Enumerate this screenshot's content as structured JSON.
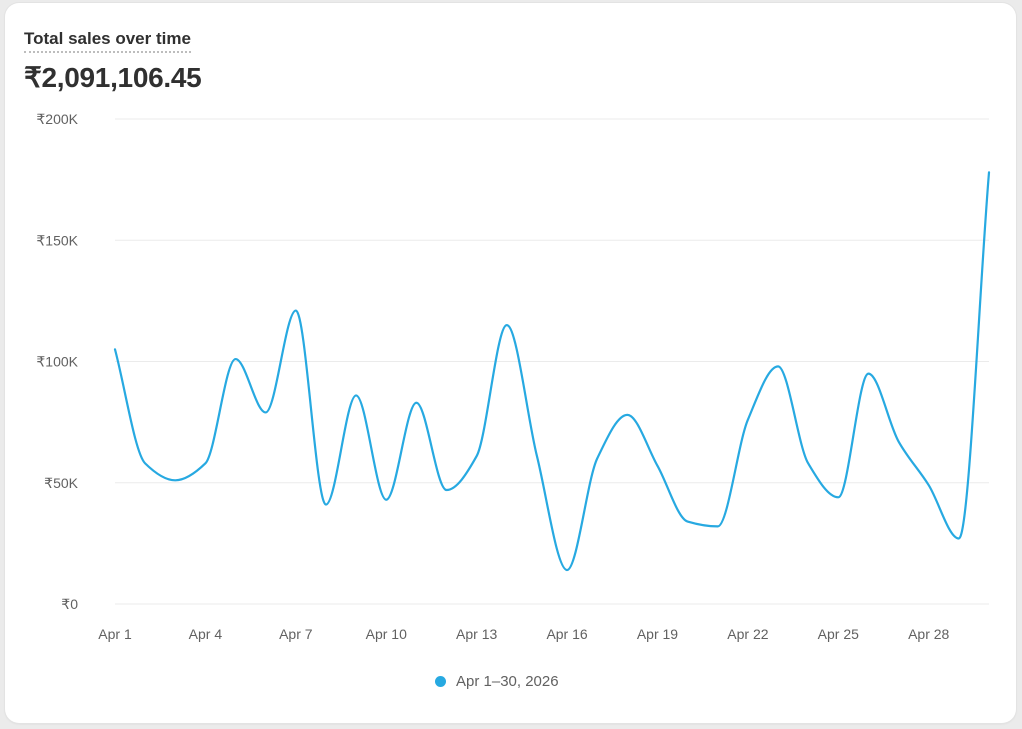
{
  "card": {
    "title": "Total sales over time",
    "total": "₹2,091,106.45"
  },
  "legend": {
    "label": "Apr 1–30, 2026"
  },
  "colors": {
    "line": "#27a9e1",
    "grid": "#ebebeb",
    "text": "#303030"
  },
  "chart_data": {
    "type": "line",
    "title": "Total sales over time",
    "ylabel": "",
    "xlabel": "",
    "ylim": [
      0,
      200000
    ],
    "yticks": [
      {
        "value": 0,
        "label": "₹0"
      },
      {
        "value": 50000,
        "label": "₹50K"
      },
      {
        "value": 100000,
        "label": "₹100K"
      },
      {
        "value": 150000,
        "label": "₹150K"
      },
      {
        "value": 200000,
        "label": "₹200K"
      }
    ],
    "xticks": [
      {
        "day": 1,
        "label": "Apr 1"
      },
      {
        "day": 4,
        "label": "Apr 4"
      },
      {
        "day": 7,
        "label": "Apr 7"
      },
      {
        "day": 10,
        "label": "Apr 10"
      },
      {
        "day": 13,
        "label": "Apr 13"
      },
      {
        "day": 16,
        "label": "Apr 16"
      },
      {
        "day": 19,
        "label": "Apr 19"
      },
      {
        "day": 22,
        "label": "Apr 22"
      },
      {
        "day": 25,
        "label": "Apr 25"
      },
      {
        "day": 28,
        "label": "Apr 28"
      }
    ],
    "grid": true,
    "legend_position": "bottom-center",
    "series": [
      {
        "name": "Apr 1–30, 2026",
        "x": [
          1,
          2,
          3,
          4,
          5,
          6,
          7,
          8,
          9,
          10,
          11,
          12,
          13,
          14,
          15,
          16,
          17,
          18,
          19,
          20,
          21,
          22,
          23,
          24,
          25,
          26,
          27,
          28,
          29,
          30
        ],
        "values": [
          105000,
          58000,
          51000,
          58000,
          101000,
          79000,
          121000,
          41000,
          86000,
          43000,
          83000,
          47000,
          61000,
          115000,
          61000,
          14000,
          60000,
          78000,
          57000,
          34000,
          32000,
          76000,
          98000,
          58000,
          44000,
          95000,
          67000,
          49000,
          27000,
          178000
        ]
      }
    ]
  }
}
